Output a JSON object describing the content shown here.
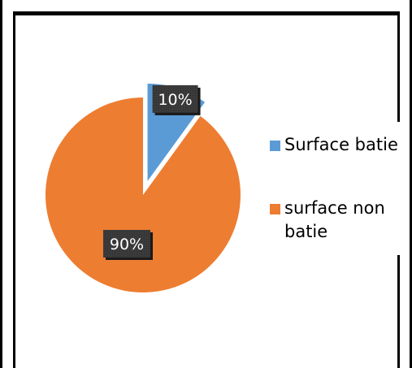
{
  "chart_data": {
    "type": "pie",
    "slices": [
      {
        "name": "Surface batie",
        "value": 10,
        "label": "10%",
        "color": "#5B9BD5",
        "exploded": true
      },
      {
        "name": "surface non batie",
        "value": 90,
        "label": "90%",
        "color": "#ED7D31",
        "exploded": false
      }
    ],
    "legend_position": "right",
    "data_label_style": "dark-box"
  }
}
